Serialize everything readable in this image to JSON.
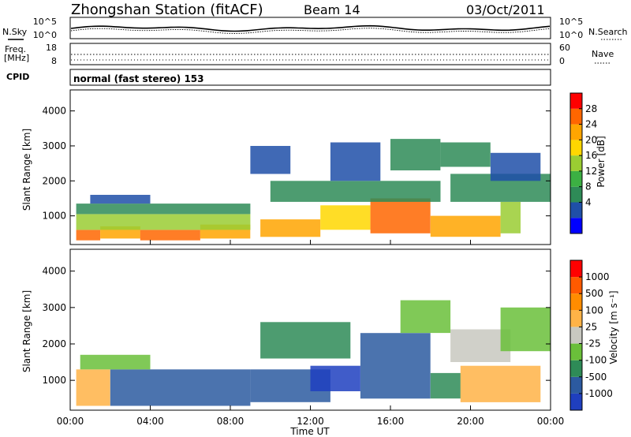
{
  "header": {
    "station": "Zhongshan Station (fitACF)",
    "beam": "Beam 14",
    "date": "03/Oct/2011"
  },
  "top_panels": {
    "nsky_label": "N.Sky",
    "nsearch_label": "N.Search",
    "noise_left_ticks": [
      "10^5",
      "10^0"
    ],
    "noise_right_ticks": [
      "10^5",
      "10^0"
    ],
    "freq_label_1": "Freq.",
    "freq_label_2": "[MHz]",
    "freq_ticks": [
      "18",
      "8"
    ],
    "nave_label": "Nave",
    "nave_ticks": [
      "60",
      "0"
    ],
    "cpid_label": "CPID",
    "cpid_text": "normal (fast stereo) 153"
  },
  "chart_data": [
    {
      "type": "heatmap",
      "title": "",
      "quantity": "Power",
      "xlabel": "Time UT",
      "ylabel": "Slant Range [km]",
      "x_ticks": [
        "00:00",
        "04:00",
        "08:00",
        "12:00",
        "16:00",
        "20:00",
        "00:00"
      ],
      "x_range_hours": [
        0,
        24
      ],
      "y_ticks": [
        1000,
        2000,
        3000,
        4000
      ],
      "ylim": [
        180,
        4600
      ],
      "colorbar": {
        "label": "Power [dB]",
        "ticks": [
          "28",
          "24",
          "20",
          "16",
          "12",
          "8",
          "4"
        ],
        "colors": [
          "#0000ff",
          "#1f4fa8",
          "#2e8b57",
          "#3cb043",
          "#9acd32",
          "#ffd700",
          "#ffa500",
          "#ff6600",
          "#ff0000"
        ]
      },
      "cells": [
        {
          "x": [
            0.3,
            1.5
          ],
          "y": [
            300,
            600
          ],
          "value": "28"
        },
        {
          "x": [
            1.5,
            3.5
          ],
          "y": [
            350,
            700
          ],
          "value": "24"
        },
        {
          "x": [
            3.5,
            6.5
          ],
          "y": [
            300,
            600
          ],
          "value": "28"
        },
        {
          "x": [
            6.5,
            9.0
          ],
          "y": [
            350,
            750
          ],
          "value": "24"
        },
        {
          "x": [
            0.3,
            9.0
          ],
          "y": [
            600,
            1050
          ],
          "value": "16"
        },
        {
          "x": [
            0.3,
            9.0
          ],
          "y": [
            1050,
            1350
          ],
          "value": "8"
        },
        {
          "x": [
            1.0,
            4.0
          ],
          "y": [
            1350,
            1600
          ],
          "value": "4"
        },
        {
          "x": [
            9.5,
            12.5
          ],
          "y": [
            400,
            900
          ],
          "value": "24"
        },
        {
          "x": [
            12.5,
            15.0
          ],
          "y": [
            600,
            1300
          ],
          "value": "20"
        },
        {
          "x": [
            15.0,
            18.0
          ],
          "y": [
            500,
            1500
          ],
          "value": "28"
        },
        {
          "x": [
            18.0,
            21.5
          ],
          "y": [
            400,
            1000
          ],
          "value": "24"
        },
        {
          "x": [
            21.5,
            22.5
          ],
          "y": [
            500,
            1400
          ],
          "value": "16"
        },
        {
          "x": [
            10.0,
            18.5
          ],
          "y": [
            1400,
            2000
          ],
          "value": "8"
        },
        {
          "x": [
            19.0,
            24.0
          ],
          "y": [
            1400,
            2200
          ],
          "value": "8"
        },
        {
          "x": [
            9.0,
            11.0
          ],
          "y": [
            2200,
            3000
          ],
          "value": "4"
        },
        {
          "x": [
            13.0,
            15.5
          ],
          "y": [
            2000,
            3100
          ],
          "value": "4"
        },
        {
          "x": [
            16.0,
            18.5
          ],
          "y": [
            2300,
            3200
          ],
          "value": "8"
        },
        {
          "x": [
            18.5,
            21.0
          ],
          "y": [
            2400,
            3100
          ],
          "value": "8"
        },
        {
          "x": [
            21.0,
            23.5
          ],
          "y": [
            2000,
            2800
          ],
          "value": "4"
        }
      ]
    },
    {
      "type": "heatmap",
      "title": "",
      "quantity": "Velocity",
      "xlabel": "Time UT",
      "ylabel": "Slant Range [km]",
      "x_ticks": [
        "00:00",
        "04:00",
        "08:00",
        "12:00",
        "16:00",
        "20:00",
        "00:00"
      ],
      "x_range_hours": [
        0,
        24
      ],
      "y_ticks": [
        1000,
        2000,
        3000,
        4000
      ],
      "ylim": [
        180,
        4600
      ],
      "colorbar": {
        "label": "Velocity [m s⁻¹]",
        "ticks": [
          "1000",
          "500",
          "100",
          "25",
          "-25",
          "-100",
          "-500",
          "-1000"
        ],
        "colors": [
          "#1f3fbf",
          "#2c5aa0",
          "#2e8b57",
          "#6abf3a",
          "#c8c8c0",
          "#ffb347",
          "#ff8c00",
          "#ff5a00",
          "#ff0000"
        ]
      },
      "cells": [
        {
          "x": [
            0.3,
            2.0
          ],
          "y": [
            300,
            1300
          ],
          "value": "100"
        },
        {
          "x": [
            2.0,
            9.0
          ],
          "y": [
            300,
            1300
          ],
          "value": "-500"
        },
        {
          "x": [
            0.5,
            4.0
          ],
          "y": [
            1300,
            1700
          ],
          "value": "-25"
        },
        {
          "x": [
            9.0,
            13.0
          ],
          "y": [
            400,
            1300
          ],
          "value": "-500"
        },
        {
          "x": [
            12.0,
            14.5
          ],
          "y": [
            700,
            1400
          ],
          "value": "-1000"
        },
        {
          "x": [
            14.5,
            18.0
          ],
          "y": [
            500,
            2300
          ],
          "value": "-500"
        },
        {
          "x": [
            18.0,
            19.5
          ],
          "y": [
            500,
            1200
          ],
          "value": "-100"
        },
        {
          "x": [
            19.5,
            23.5
          ],
          "y": [
            400,
            1400
          ],
          "value": "100"
        },
        {
          "x": [
            19.0,
            22.0
          ],
          "y": [
            1500,
            2400
          ],
          "value": "25"
        },
        {
          "x": [
            21.5,
            24.0
          ],
          "y": [
            1800,
            3000
          ],
          "value": "-25"
        },
        {
          "x": [
            9.5,
            14.0
          ],
          "y": [
            1600,
            2600
          ],
          "value": "-100"
        },
        {
          "x": [
            16.5,
            19.0
          ],
          "y": [
            2300,
            3200
          ],
          "value": "-25"
        }
      ]
    }
  ]
}
